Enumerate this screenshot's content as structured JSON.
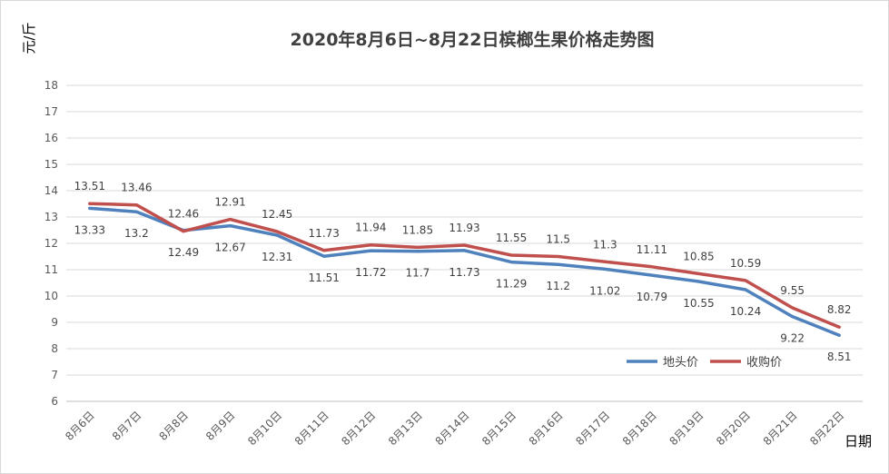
{
  "chart_data": {
    "type": "line",
    "title": "2020年8月6日~8月22日槟榔生果价格走势图",
    "ylabel": "元/斤",
    "xlabel": "日期",
    "ylim": [
      6,
      18
    ],
    "yticks": [
      6,
      7,
      8,
      9,
      10,
      11,
      12,
      13,
      14,
      15,
      16,
      17,
      18
    ],
    "grid": true,
    "legend_position": "bottom-right",
    "categories": [
      "8月6日",
      "8月7日",
      "8月8日",
      "8月9日",
      "8月10日",
      "8月11日",
      "8月12日",
      "8月13日",
      "8月14日",
      "8月15日",
      "8月16日",
      "8月17日",
      "8月18日",
      "8月19日",
      "8月20日",
      "8月21日",
      "8月22日"
    ],
    "series": [
      {
        "name": "地头价",
        "color": "#4F81BD",
        "values": [
          13.33,
          13.2,
          12.49,
          12.67,
          12.31,
          11.51,
          11.72,
          11.7,
          11.73,
          11.29,
          11.2,
          11.02,
          10.79,
          10.55,
          10.24,
          9.22,
          8.51
        ]
      },
      {
        "name": "收购价",
        "color": "#C0504D",
        "values": [
          13.51,
          13.46,
          12.46,
          12.91,
          12.45,
          11.73,
          11.94,
          11.85,
          11.93,
          11.55,
          11.5,
          11.3,
          11.11,
          10.85,
          10.59,
          9.55,
          8.82
        ]
      }
    ]
  }
}
